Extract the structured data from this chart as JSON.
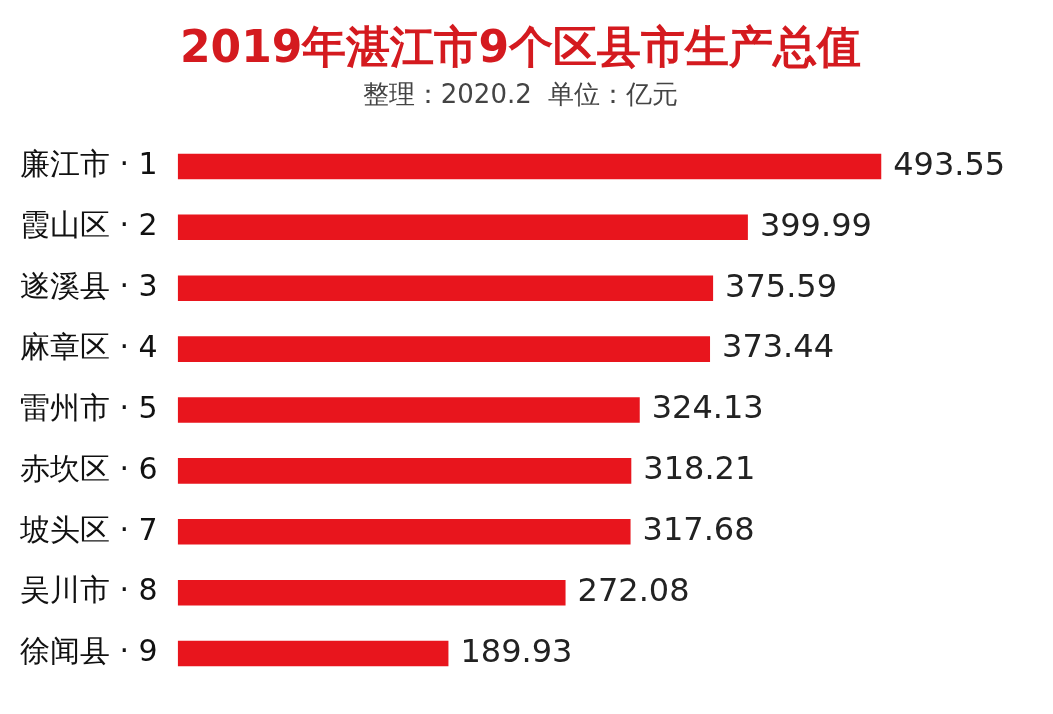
{
  "chart_data": {
    "type": "bar",
    "orientation": "horizontal",
    "title": "2019年湛江市9个区县市生产总值",
    "subtitle": "整理：2020.2  单位：亿元",
    "categories": [
      "廉江市 · 1",
      "霞山区 · 2",
      "遂溪县 · 3",
      "麻章区 · 4",
      "雷州市 · 5",
      "赤坎区 · 6",
      "坡头区 · 7",
      "吴川市 · 8",
      "徐闻县 · 9"
    ],
    "values": [
      493.55,
      399.99,
      375.59,
      373.44,
      324.13,
      318.21,
      317.68,
      272.08,
      189.93
    ],
    "color": "#e8151d",
    "data_labels": true
  }
}
